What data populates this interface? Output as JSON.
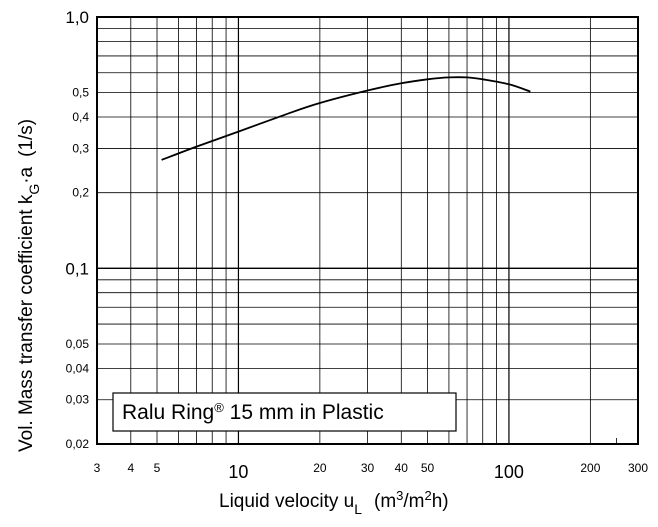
{
  "chart_data": {
    "type": "line",
    "x_scale": "log",
    "y_scale": "log",
    "xlim": [
      3,
      300
    ],
    "ylim": [
      0.02,
      1.0
    ],
    "grid": true,
    "xlabel": {
      "main": "Liquid velocity u",
      "sub": "L",
      "unit_open": "(m",
      "unit_sup1": "3",
      "unit_mid": "/m",
      "unit_sup2": "2",
      "unit_close": "h)"
    },
    "ylabel": {
      "main": "Vol. Mass transfer coefficient k",
      "sub": "G",
      "after": "·a",
      "unit": "(1/s)"
    },
    "x_ticks": [
      {
        "value": 3,
        "label": "3",
        "major": false
      },
      {
        "value": 4,
        "label": "4",
        "major": false
      },
      {
        "value": 5,
        "label": "5",
        "major": false
      },
      {
        "value": 10,
        "label": "10",
        "major": true
      },
      {
        "value": 20,
        "label": "20",
        "major": false
      },
      {
        "value": 30,
        "label": "30",
        "major": false
      },
      {
        "value": 40,
        "label": "40",
        "major": false
      },
      {
        "value": 50,
        "label": "50",
        "major": false
      },
      {
        "value": 100,
        "label": "100",
        "major": true
      },
      {
        "value": 200,
        "label": "200",
        "major": false
      },
      {
        "value": 300,
        "label": "300",
        "major": false
      }
    ],
    "y_ticks": [
      {
        "value": 1.0,
        "label": "1,0",
        "major": true
      },
      {
        "value": 0.5,
        "label": "0,5",
        "major": false
      },
      {
        "value": 0.4,
        "label": "0,4",
        "major": false
      },
      {
        "value": 0.3,
        "label": "0,3",
        "major": false
      },
      {
        "value": 0.2,
        "label": "0,2",
        "major": false
      },
      {
        "value": 0.1,
        "label": "0,1",
        "major": true
      },
      {
        "value": 0.05,
        "label": "0,05",
        "major": false
      },
      {
        "value": 0.04,
        "label": "0,04",
        "major": false
      },
      {
        "value": 0.03,
        "label": "0,03",
        "major": false
      },
      {
        "value": 0.02,
        "label": "0,02",
        "major": false
      }
    ],
    "series": [
      {
        "x": [
          5.2,
          7,
          10,
          15,
          20,
          30,
          40,
          50,
          60,
          70,
          80,
          100,
          120
        ],
        "y": [
          0.27,
          0.305,
          0.35,
          0.41,
          0.455,
          0.51,
          0.545,
          0.565,
          0.575,
          0.575,
          0.565,
          0.54,
          0.505
        ],
        "color": "#000000"
      }
    ],
    "legend": {
      "text": "Ralu Ring",
      "reg": "®",
      "rest": " 15 mm in Plastic",
      "placement": "bottom-left"
    }
  }
}
